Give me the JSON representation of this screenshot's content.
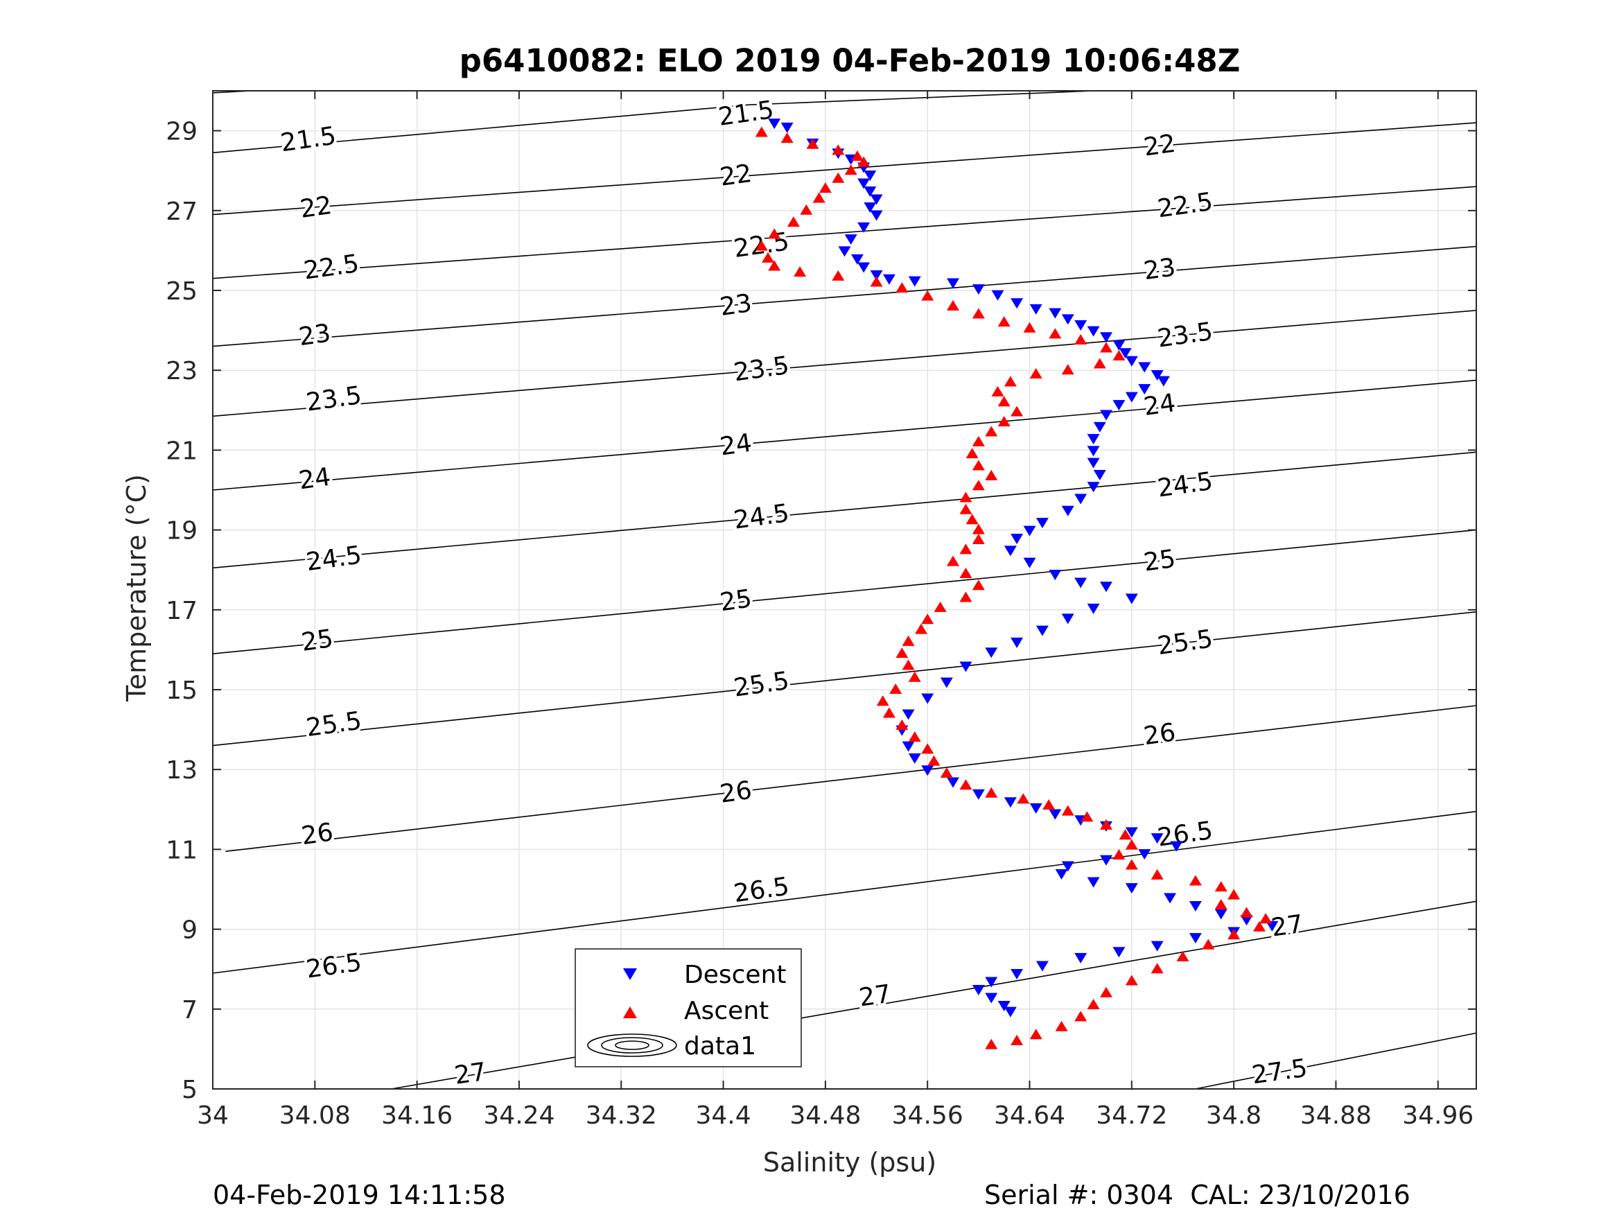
{
  "chart_data": {
    "type": "scatter",
    "title": "p6410082: ELO 2019 04-Feb-2019 10:06:48Z",
    "xlabel": "Salinity (psu)",
    "ylabel": "Temperature (°C)",
    "xlim": [
      34,
      34.99
    ],
    "ylim": [
      5,
      30
    ],
    "x_ticks": [
      "34",
      "34.08",
      "34.16",
      "34.24",
      "34.32",
      "34.4",
      "34.48",
      "34.56",
      "34.64",
      "34.72",
      "34.8",
      "34.88",
      "34.96"
    ],
    "y_ticks": [
      "5",
      "7",
      "9",
      "11",
      "13",
      "15",
      "17",
      "19",
      "21",
      "23",
      "25",
      "27",
      "29"
    ],
    "grid": true,
    "legend_position": "bottom-left",
    "legend": [
      "Descent",
      "Ascent",
      "data1"
    ],
    "colors": {
      "descent": "#0000ff",
      "ascent": "#ff0000",
      "contour": "#000000"
    },
    "footer_left": "04-Feb-2019 14:11:58",
    "footer_right": "Serial #: 0304  CAL: 23/10/2016",
    "contour_labels": [
      {
        "text": "21.5",
        "x": 34.075,
        "y": 28.75
      },
      {
        "text": "22",
        "x": 34.081,
        "y": 27.05
      },
      {
        "text": "22.5",
        "x": 34.093,
        "y": 25.55
      },
      {
        "text": "23",
        "x": 34.08,
        "y": 23.85
      },
      {
        "text": "23.5",
        "x": 34.095,
        "y": 22.25
      },
      {
        "text": "24",
        "x": 34.08,
        "y": 20.25
      },
      {
        "text": "24.5",
        "x": 34.095,
        "y": 18.25
      },
      {
        "text": "25",
        "x": 34.082,
        "y": 16.2
      },
      {
        "text": "25.5",
        "x": 34.095,
        "y": 14.1
      },
      {
        "text": "26",
        "x": 34.082,
        "y": 11.35
      },
      {
        "text": "26.5",
        "x": 34.095,
        "y": 8.05
      },
      {
        "text": "27",
        "x": 34.202,
        "y": 5.35
      },
      {
        "text": "21.5",
        "x": 34.418,
        "y": 29.4
      },
      {
        "text": "22",
        "x": 34.41,
        "y": 27.85
      },
      {
        "text": "22.5",
        "x": 34.43,
        "y": 26.1
      },
      {
        "text": "23",
        "x": 34.41,
        "y": 24.6
      },
      {
        "text": "23.5",
        "x": 34.43,
        "y": 23.0
      },
      {
        "text": "24",
        "x": 34.41,
        "y": 21.1
      },
      {
        "text": "24.5",
        "x": 34.43,
        "y": 19.3
      },
      {
        "text": "25",
        "x": 34.41,
        "y": 17.2
      },
      {
        "text": "25.5",
        "x": 34.43,
        "y": 15.1
      },
      {
        "text": "26",
        "x": 34.41,
        "y": 12.4
      },
      {
        "text": "26.5",
        "x": 34.43,
        "y": 9.95
      },
      {
        "text": "27",
        "x": 34.519,
        "y": 7.3
      },
      {
        "text": "22",
        "x": 34.742,
        "y": 28.6
      },
      {
        "text": "22.5",
        "x": 34.762,
        "y": 27.1
      },
      {
        "text": "23",
        "x": 34.742,
        "y": 25.5
      },
      {
        "text": "23.5",
        "x": 34.762,
        "y": 23.85
      },
      {
        "text": "24",
        "x": 34.742,
        "y": 22.1
      },
      {
        "text": "24.5",
        "x": 34.762,
        "y": 20.1
      },
      {
        "text": "25",
        "x": 34.742,
        "y": 18.2
      },
      {
        "text": "25.5",
        "x": 34.762,
        "y": 16.15
      },
      {
        "text": "26",
        "x": 34.742,
        "y": 13.85
      },
      {
        "text": "26.5",
        "x": 34.762,
        "y": 11.35
      },
      {
        "text": "27",
        "x": 34.842,
        "y": 9.05
      },
      {
        "text": "27.5",
        "x": 34.836,
        "y": 5.4
      }
    ],
    "contours": [
      {
        "level": "21.5",
        "points": [
          [
            34,
            28.45
          ],
          [
            34.42,
            29.65
          ],
          [
            34.69,
            30.0
          ]
        ]
      },
      {
        "level": "21.5b",
        "points": [
          [
            34,
            29.95
          ],
          [
            34.03,
            30.0
          ]
        ]
      },
      {
        "level": "22",
        "points": [
          [
            34,
            26.9
          ],
          [
            34.99,
            29.2
          ]
        ]
      },
      {
        "level": "22.5",
        "points": [
          [
            34,
            25.3
          ],
          [
            34.99,
            27.6
          ]
        ]
      },
      {
        "level": "23",
        "points": [
          [
            34,
            23.6
          ],
          [
            34.99,
            26.1
          ]
        ]
      },
      {
        "level": "23.5",
        "points": [
          [
            34,
            21.85
          ],
          [
            34.99,
            24.5
          ]
        ]
      },
      {
        "level": "24",
        "points": [
          [
            34,
            20.0
          ],
          [
            34.99,
            22.75
          ]
        ]
      },
      {
        "level": "24.5",
        "points": [
          [
            34,
            18.05
          ],
          [
            34.99,
            20.95
          ]
        ]
      },
      {
        "level": "25",
        "points": [
          [
            34,
            15.9
          ],
          [
            34.99,
            19.0
          ]
        ]
      },
      {
        "level": "25.5",
        "points": [
          [
            34,
            13.6
          ],
          [
            34.99,
            16.95
          ]
        ]
      },
      {
        "level": "26",
        "points": [
          [
            34.01,
            10.95
          ],
          [
            34.99,
            14.6
          ]
        ]
      },
      {
        "level": "26.5",
        "points": [
          [
            34,
            7.9
          ],
          [
            34.99,
            11.95
          ]
        ]
      },
      {
        "level": "27",
        "points": [
          [
            34.14,
            5.0
          ],
          [
            34.99,
            9.7
          ]
        ]
      },
      {
        "level": "27.5",
        "points": [
          [
            34.77,
            5.0
          ],
          [
            34.99,
            6.4
          ]
        ]
      }
    ],
    "series": [
      {
        "name": "Descent",
        "marker": "triangle-down",
        "points": [
          [
            34.44,
            29.2
          ],
          [
            34.45,
            29.1
          ],
          [
            34.47,
            28.7
          ],
          [
            34.49,
            28.45
          ],
          [
            34.5,
            28.3
          ],
          [
            34.51,
            28.1
          ],
          [
            34.515,
            27.9
          ],
          [
            34.51,
            27.7
          ],
          [
            34.515,
            27.5
          ],
          [
            34.52,
            27.3
          ],
          [
            34.515,
            27.1
          ],
          [
            34.52,
            26.9
          ],
          [
            34.51,
            26.6
          ],
          [
            34.5,
            26.3
          ],
          [
            34.495,
            26.0
          ],
          [
            34.505,
            25.8
          ],
          [
            34.51,
            25.6
          ],
          [
            34.52,
            25.4
          ],
          [
            34.53,
            25.3
          ],
          [
            34.55,
            25.25
          ],
          [
            34.58,
            25.2
          ],
          [
            34.6,
            25.05
          ],
          [
            34.615,
            24.9
          ],
          [
            34.63,
            24.7
          ],
          [
            34.645,
            24.55
          ],
          [
            34.66,
            24.45
          ],
          [
            34.67,
            24.3
          ],
          [
            34.68,
            24.15
          ],
          [
            34.69,
            24.0
          ],
          [
            34.7,
            23.85
          ],
          [
            34.71,
            23.65
          ],
          [
            34.715,
            23.45
          ],
          [
            34.72,
            23.25
          ],
          [
            34.73,
            23.1
          ],
          [
            34.74,
            22.9
          ],
          [
            34.745,
            22.75
          ],
          [
            34.73,
            22.55
          ],
          [
            34.72,
            22.35
          ],
          [
            34.71,
            22.15
          ],
          [
            34.7,
            21.9
          ],
          [
            34.695,
            21.6
          ],
          [
            34.69,
            21.3
          ],
          [
            34.69,
            21.0
          ],
          [
            34.69,
            20.7
          ],
          [
            34.695,
            20.4
          ],
          [
            34.69,
            20.1
          ],
          [
            34.68,
            19.8
          ],
          [
            34.67,
            19.5
          ],
          [
            34.65,
            19.2
          ],
          [
            34.64,
            19.0
          ],
          [
            34.63,
            18.8
          ],
          [
            34.625,
            18.5
          ],
          [
            34.64,
            18.2
          ],
          [
            34.66,
            17.9
          ],
          [
            34.68,
            17.7
          ],
          [
            34.7,
            17.6
          ],
          [
            34.72,
            17.3
          ],
          [
            34.69,
            17.05
          ],
          [
            34.67,
            16.8
          ],
          [
            34.65,
            16.5
          ],
          [
            34.63,
            16.2
          ],
          [
            34.61,
            15.95
          ],
          [
            34.59,
            15.6
          ],
          [
            34.575,
            15.2
          ],
          [
            34.56,
            14.8
          ],
          [
            34.545,
            14.4
          ],
          [
            34.54,
            14.0
          ],
          [
            34.545,
            13.6
          ],
          [
            34.55,
            13.3
          ],
          [
            34.56,
            13.0
          ],
          [
            34.58,
            12.7
          ],
          [
            34.6,
            12.4
          ],
          [
            34.625,
            12.2
          ],
          [
            34.645,
            12.05
          ],
          [
            34.66,
            11.9
          ],
          [
            34.68,
            11.75
          ],
          [
            34.7,
            11.6
          ],
          [
            34.72,
            11.45
          ],
          [
            34.74,
            11.3
          ],
          [
            34.755,
            11.1
          ],
          [
            34.73,
            10.9
          ],
          [
            34.7,
            10.75
          ],
          [
            34.67,
            10.6
          ],
          [
            34.665,
            10.4
          ],
          [
            34.69,
            10.2
          ],
          [
            34.72,
            10.05
          ],
          [
            34.75,
            9.8
          ],
          [
            34.77,
            9.6
          ],
          [
            34.79,
            9.4
          ],
          [
            34.81,
            9.25
          ],
          [
            34.83,
            9.1
          ],
          [
            34.8,
            8.95
          ],
          [
            34.77,
            8.8
          ],
          [
            34.74,
            8.6
          ],
          [
            34.71,
            8.45
          ],
          [
            34.68,
            8.3
          ],
          [
            34.65,
            8.1
          ],
          [
            34.63,
            7.9
          ],
          [
            34.61,
            7.7
          ],
          [
            34.6,
            7.5
          ],
          [
            34.61,
            7.3
          ],
          [
            34.62,
            7.1
          ],
          [
            34.625,
            6.95
          ]
        ]
      },
      {
        "name": "Ascent",
        "marker": "triangle-up",
        "points": [
          [
            34.43,
            28.95
          ],
          [
            34.45,
            28.8
          ],
          [
            34.47,
            28.65
          ],
          [
            34.49,
            28.5
          ],
          [
            34.505,
            28.35
          ],
          [
            34.51,
            28.2
          ],
          [
            34.5,
            28.0
          ],
          [
            34.49,
            27.8
          ],
          [
            34.48,
            27.55
          ],
          [
            34.475,
            27.3
          ],
          [
            34.465,
            27.0
          ],
          [
            34.455,
            26.7
          ],
          [
            34.44,
            26.4
          ],
          [
            34.43,
            26.1
          ],
          [
            34.435,
            25.8
          ],
          [
            34.44,
            25.6
          ],
          [
            34.46,
            25.45
          ],
          [
            34.49,
            25.35
          ],
          [
            34.52,
            25.2
          ],
          [
            34.54,
            25.05
          ],
          [
            34.56,
            24.85
          ],
          [
            34.58,
            24.6
          ],
          [
            34.6,
            24.4
          ],
          [
            34.62,
            24.2
          ],
          [
            34.64,
            24.05
          ],
          [
            34.66,
            23.9
          ],
          [
            34.68,
            23.75
          ],
          [
            34.7,
            23.55
          ],
          [
            34.71,
            23.35
          ],
          [
            34.695,
            23.15
          ],
          [
            34.67,
            23.0
          ],
          [
            34.645,
            22.9
          ],
          [
            34.625,
            22.7
          ],
          [
            34.615,
            22.45
          ],
          [
            34.62,
            22.2
          ],
          [
            34.63,
            21.95
          ],
          [
            34.62,
            21.7
          ],
          [
            34.61,
            21.45
          ],
          [
            34.6,
            21.2
          ],
          [
            34.595,
            20.9
          ],
          [
            34.6,
            20.6
          ],
          [
            34.61,
            20.35
          ],
          [
            34.6,
            20.1
          ],
          [
            34.59,
            19.8
          ],
          [
            34.59,
            19.5
          ],
          [
            34.595,
            19.25
          ],
          [
            34.6,
            19.0
          ],
          [
            34.6,
            18.75
          ],
          [
            34.59,
            18.5
          ],
          [
            34.58,
            18.2
          ],
          [
            34.59,
            17.9
          ],
          [
            34.6,
            17.6
          ],
          [
            34.59,
            17.3
          ],
          [
            34.57,
            17.05
          ],
          [
            34.56,
            16.75
          ],
          [
            34.555,
            16.5
          ],
          [
            34.545,
            16.2
          ],
          [
            34.54,
            15.9
          ],
          [
            34.545,
            15.6
          ],
          [
            34.55,
            15.3
          ],
          [
            34.535,
            15.0
          ],
          [
            34.525,
            14.7
          ],
          [
            34.53,
            14.4
          ],
          [
            34.54,
            14.1
          ],
          [
            34.55,
            13.8
          ],
          [
            34.56,
            13.5
          ],
          [
            34.565,
            13.2
          ],
          [
            34.575,
            12.9
          ],
          [
            34.59,
            12.6
          ],
          [
            34.61,
            12.4
          ],
          [
            34.635,
            12.25
          ],
          [
            34.655,
            12.1
          ],
          [
            34.67,
            11.95
          ],
          [
            34.685,
            11.8
          ],
          [
            34.7,
            11.6
          ],
          [
            34.715,
            11.35
          ],
          [
            34.72,
            11.1
          ],
          [
            34.71,
            10.85
          ],
          [
            34.72,
            10.6
          ],
          [
            34.74,
            10.35
          ],
          [
            34.77,
            10.2
          ],
          [
            34.79,
            10.05
          ],
          [
            34.8,
            9.85
          ],
          [
            34.79,
            9.6
          ],
          [
            34.81,
            9.4
          ],
          [
            34.825,
            9.25
          ],
          [
            34.82,
            9.05
          ],
          [
            34.8,
            8.85
          ],
          [
            34.78,
            8.6
          ],
          [
            34.76,
            8.3
          ],
          [
            34.74,
            8.0
          ],
          [
            34.72,
            7.7
          ],
          [
            34.7,
            7.4
          ],
          [
            34.69,
            7.1
          ],
          [
            34.68,
            6.8
          ],
          [
            34.665,
            6.55
          ],
          [
            34.645,
            6.35
          ],
          [
            34.63,
            6.2
          ],
          [
            34.61,
            6.1
          ]
        ]
      }
    ]
  }
}
